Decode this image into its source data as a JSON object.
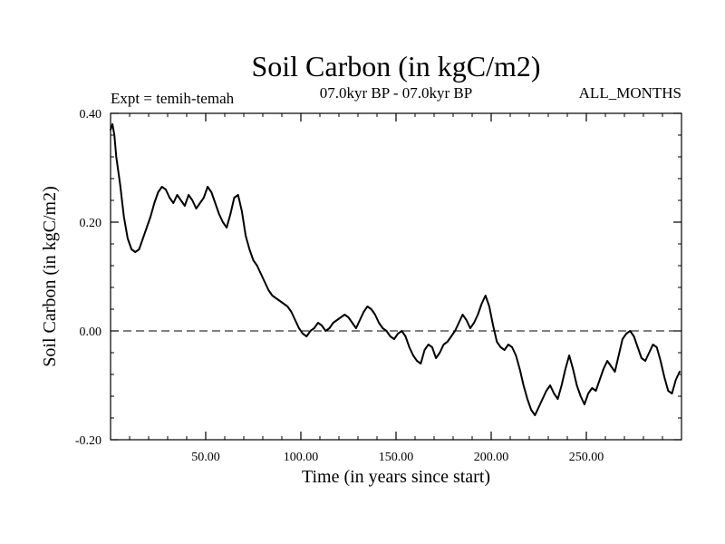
{
  "chart_data": {
    "type": "line",
    "title": "Soil Carbon (in kgC/m2)",
    "experiment_label": "Expt = temih-temah",
    "period_label": "07.0kyr BP - 07.0kyr BP",
    "months_label": "ALL_MONTHS",
    "xlabel": "Time (in years since start)",
    "ylabel": "Soil Carbon (in kgC/m2)",
    "xlim": [
      0,
      300
    ],
    "ylim": [
      -0.2,
      0.4
    ],
    "x_ticks": [
      50,
      100,
      150,
      200,
      250
    ],
    "x_tick_labels": [
      "50.00",
      "100.00",
      "150.00",
      "200.00",
      "250.00"
    ],
    "y_ticks": [
      -0.2,
      0.0,
      0.2,
      0.4
    ],
    "y_tick_labels": [
      "-0.20",
      "0.00",
      "0.20",
      "0.40"
    ],
    "reference_line": {
      "y": 0.0,
      "style": "dashed"
    },
    "grid": false,
    "series": [
      {
        "name": "Soil Carbon",
        "color": "#000000",
        "x": [
          0,
          1,
          2,
          3,
          5,
          7,
          9,
          11,
          13,
          15,
          17,
          19,
          21,
          23,
          25,
          27,
          29,
          31,
          33,
          35,
          37,
          39,
          41,
          43,
          45,
          47,
          49,
          51,
          53,
          55,
          57,
          59,
          61,
          63,
          65,
          67,
          69,
          71,
          73,
          75,
          77,
          79,
          81,
          83,
          85,
          87,
          89,
          91,
          93,
          95,
          97,
          99,
          101,
          103,
          105,
          107,
          109,
          111,
          113,
          115,
          117,
          119,
          121,
          123,
          125,
          127,
          129,
          131,
          133,
          135,
          137,
          139,
          141,
          143,
          145,
          147,
          149,
          151,
          153,
          155,
          157,
          159,
          161,
          163,
          165,
          167,
          169,
          171,
          173,
          175,
          177,
          179,
          181,
          183,
          185,
          187,
          189,
          191,
          193,
          195,
          197,
          199,
          201,
          203,
          205,
          207,
          209,
          211,
          213,
          215,
          217,
          219,
          221,
          223,
          225,
          227,
          229,
          231,
          233,
          235,
          237,
          239,
          241,
          243,
          245,
          247,
          249,
          251,
          253,
          255,
          257,
          259,
          261,
          263,
          265,
          267,
          269,
          271,
          273,
          275,
          277,
          279,
          281,
          283,
          285,
          287,
          289,
          291,
          293,
          295,
          297,
          299
        ],
        "y": [
          0.37,
          0.38,
          0.36,
          0.32,
          0.27,
          0.21,
          0.17,
          0.15,
          0.145,
          0.15,
          0.17,
          0.19,
          0.21,
          0.235,
          0.255,
          0.265,
          0.26,
          0.245,
          0.235,
          0.25,
          0.24,
          0.23,
          0.25,
          0.24,
          0.225,
          0.235,
          0.245,
          0.265,
          0.255,
          0.235,
          0.215,
          0.2,
          0.19,
          0.215,
          0.245,
          0.25,
          0.22,
          0.175,
          0.15,
          0.13,
          0.12,
          0.105,
          0.09,
          0.075,
          0.065,
          0.06,
          0.055,
          0.05,
          0.045,
          0.035,
          0.02,
          0.005,
          -0.005,
          -0.01,
          0.0,
          0.005,
          0.015,
          0.01,
          0.0,
          0.005,
          0.015,
          0.02,
          0.025,
          0.03,
          0.025,
          0.015,
          0.005,
          0.02,
          0.035,
          0.045,
          0.04,
          0.03,
          0.015,
          0.005,
          0.0,
          -0.01,
          -0.015,
          -0.005,
          0.0,
          -0.01,
          -0.03,
          -0.045,
          -0.055,
          -0.06,
          -0.035,
          -0.025,
          -0.03,
          -0.05,
          -0.04,
          -0.025,
          -0.02,
          -0.01,
          0.0,
          0.015,
          0.03,
          0.02,
          0.005,
          0.015,
          0.03,
          0.05,
          0.065,
          0.045,
          0.01,
          -0.02,
          -0.03,
          -0.035,
          -0.025,
          -0.03,
          -0.045,
          -0.07,
          -0.1,
          -0.125,
          -0.145,
          -0.155,
          -0.14,
          -0.125,
          -0.11,
          -0.1,
          -0.115,
          -0.125,
          -0.1,
          -0.07,
          -0.045,
          -0.07,
          -0.1,
          -0.12,
          -0.135,
          -0.115,
          -0.105,
          -0.11,
          -0.09,
          -0.07,
          -0.055,
          -0.065,
          -0.075,
          -0.045,
          -0.015,
          -0.005,
          0.0,
          -0.01,
          -0.03,
          -0.05,
          -0.055,
          -0.04,
          -0.025,
          -0.03,
          -0.055,
          -0.085,
          -0.11,
          -0.115,
          -0.09,
          -0.075
        ]
      }
    ]
  }
}
